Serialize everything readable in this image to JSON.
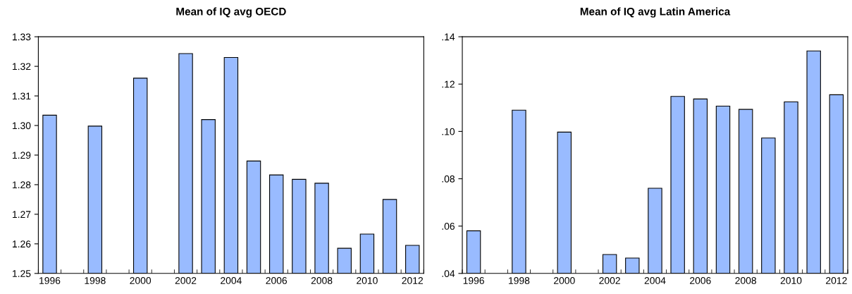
{
  "chart_data": [
    {
      "type": "bar",
      "title": "Mean of IQ avg OECD",
      "categories": [
        "1996",
        null,
        "1998",
        null,
        "2000",
        null,
        "2002",
        null,
        "2004",
        null,
        "2006",
        null,
        "2008",
        null,
        "2010",
        null,
        "2012"
      ],
      "color": "#99bbff",
      "values": [
        1.3035,
        null,
        1.2998,
        null,
        1.316,
        null,
        1.3243,
        1.302,
        1.323,
        1.288,
        1.2833,
        1.2818,
        1.2805,
        1.2585,
        1.2633,
        1.275,
        1.2595
      ],
      "ylim": [
        1.25,
        1.33
      ],
      "yticks": [
        {
          "value": 1.25,
          "label": "1.25"
        },
        {
          "value": 1.26,
          "label": "1.26"
        },
        {
          "value": 1.27,
          "label": "1.27"
        },
        {
          "value": 1.28,
          "label": "1.28"
        },
        {
          "value": 1.29,
          "label": "1.29"
        },
        {
          "value": 1.3,
          "label": "1.30"
        },
        {
          "value": 1.31,
          "label": "1.31"
        },
        {
          "value": 1.32,
          "label": "1.32"
        },
        {
          "value": 1.33,
          "label": "1.33"
        }
      ],
      "grid": false
    },
    {
      "type": "bar",
      "title": "Mean of IQ avg Latin America",
      "categories": [
        "1996",
        null,
        "1998",
        null,
        "2000",
        null,
        "2002",
        null,
        "2004",
        null,
        "2006",
        null,
        "2008",
        null,
        "2010",
        null,
        "2012"
      ],
      "color": "#99bbff",
      "values": [
        0.058,
        null,
        0.109,
        null,
        0.0997,
        null,
        0.048,
        0.0465,
        0.076,
        0.1148,
        0.1137,
        0.1107,
        0.1093,
        0.0972,
        0.1125,
        0.134,
        0.1155
      ],
      "ylim": [
        0.04,
        0.14
      ],
      "yticks": [
        {
          "value": 0.04,
          "label": ".04"
        },
        {
          "value": 0.06,
          "label": ".06"
        },
        {
          "value": 0.08,
          "label": ".08"
        },
        {
          "value": 0.1,
          "label": ".10"
        },
        {
          "value": 0.12,
          "label": ".12"
        },
        {
          "value": 0.14,
          "label": ".14"
        }
      ],
      "grid": false
    }
  ]
}
